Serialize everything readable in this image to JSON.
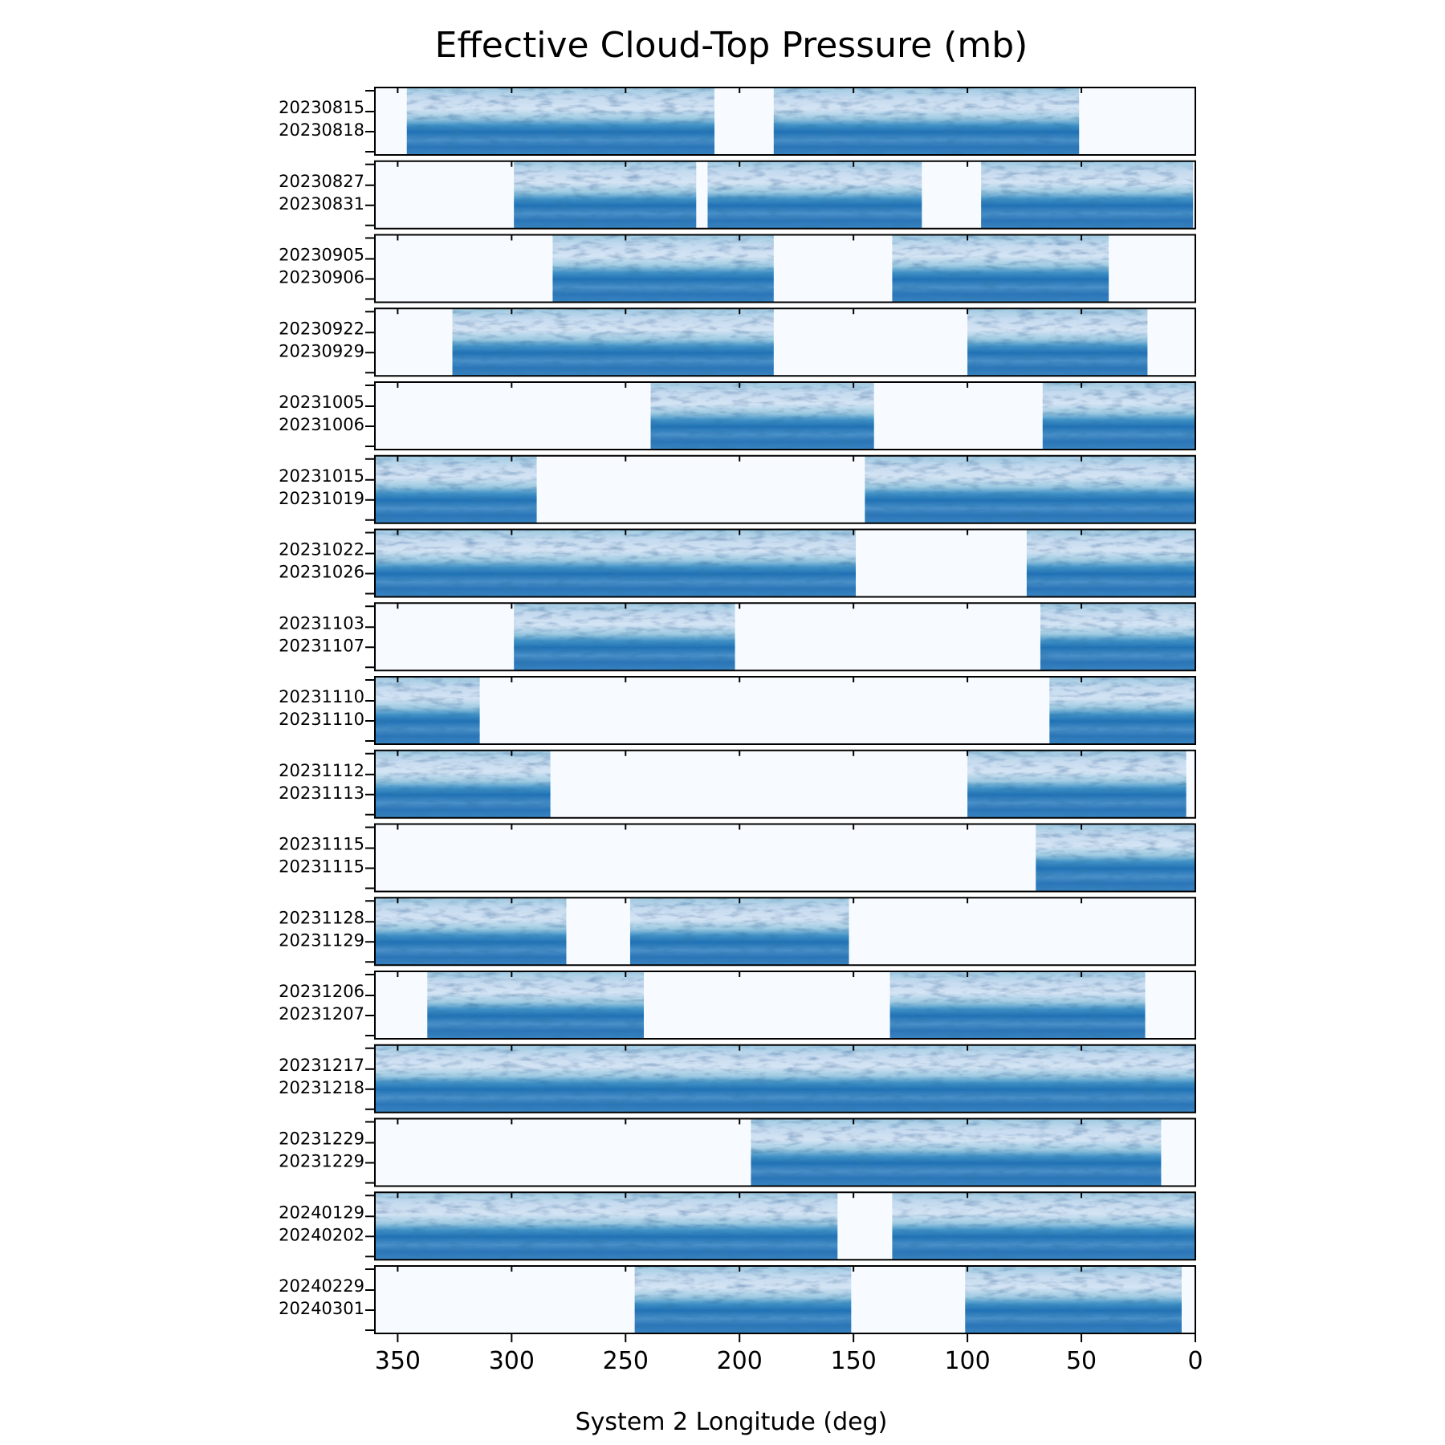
{
  "chart_data": {
    "type": "heatmap",
    "title": "Effective Cloud-Top Pressure (mb)",
    "xlabel": "System 2 Longitude (deg)",
    "xlim": [
      360,
      0
    ],
    "x_ticks": [
      350,
      300,
      250,
      200,
      150,
      100,
      50,
      0
    ],
    "colormap": "Blues",
    "colormap_light": "#f7fbff",
    "colormap_dark": "#08306b",
    "panels": [
      {
        "dates": [
          "20230815",
          "20230818"
        ],
        "coverage": [
          [
            346,
            211
          ],
          [
            185,
            51
          ]
        ]
      },
      {
        "dates": [
          "20230827",
          "20230831"
        ],
        "coverage": [
          [
            299,
            219
          ],
          [
            214,
            120
          ],
          [
            94,
            1
          ]
        ]
      },
      {
        "dates": [
          "20230905",
          "20230906"
        ],
        "coverage": [
          [
            282,
            185
          ],
          [
            133,
            38
          ]
        ]
      },
      {
        "dates": [
          "20230922",
          "20230929"
        ],
        "coverage": [
          [
            326,
            185
          ],
          [
            100,
            21
          ]
        ]
      },
      {
        "dates": [
          "20231005",
          "20231006"
        ],
        "coverage": [
          [
            239,
            141
          ],
          [
            67,
            0
          ]
        ]
      },
      {
        "dates": [
          "20231015",
          "20231019"
        ],
        "coverage": [
          [
            360,
            289
          ],
          [
            145,
            0
          ]
        ]
      },
      {
        "dates": [
          "20231022",
          "20231026"
        ],
        "coverage": [
          [
            360,
            149
          ],
          [
            74,
            0
          ]
        ]
      },
      {
        "dates": [
          "20231103",
          "20231107"
        ],
        "coverage": [
          [
            299,
            202
          ],
          [
            68,
            0
          ]
        ]
      },
      {
        "dates": [
          "20231110",
          "20231110"
        ],
        "coverage": [
          [
            360,
            314
          ],
          [
            64,
            0
          ]
        ]
      },
      {
        "dates": [
          "20231112",
          "20231113"
        ],
        "coverage": [
          [
            360,
            283
          ],
          [
            100,
            4
          ]
        ]
      },
      {
        "dates": [
          "20231115",
          "20231115"
        ],
        "coverage": [
          [
            70,
            0
          ]
        ]
      },
      {
        "dates": [
          "20231128",
          "20231129"
        ],
        "coverage": [
          [
            360,
            276
          ],
          [
            248,
            152
          ]
        ]
      },
      {
        "dates": [
          "20231206",
          "20231207"
        ],
        "coverage": [
          [
            337,
            242
          ],
          [
            134,
            22
          ]
        ]
      },
      {
        "dates": [
          "20231217",
          "20231218"
        ],
        "coverage": [
          [
            360,
            0
          ]
        ]
      },
      {
        "dates": [
          "20231229",
          "20231229"
        ],
        "coverage": [
          [
            195,
            15
          ]
        ]
      },
      {
        "dates": [
          "20240129",
          "20240202"
        ],
        "coverage": [
          [
            360,
            157
          ],
          [
            133,
            0
          ]
        ]
      },
      {
        "dates": [
          "20240229",
          "20240301"
        ],
        "coverage": [
          [
            246,
            151
          ],
          [
            101,
            6
          ]
        ]
      }
    ]
  }
}
